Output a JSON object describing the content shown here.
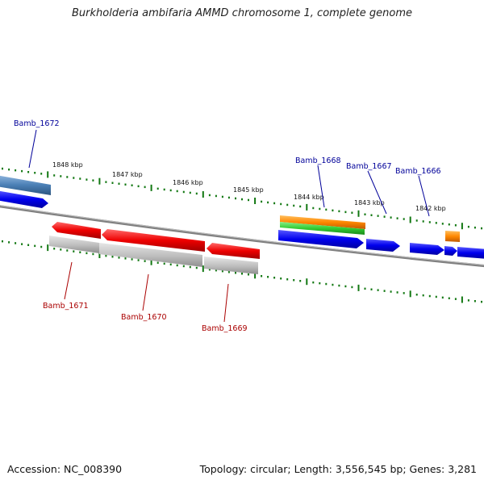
{
  "title": "Burkholderia ambifaria AMMD chromosome 1, complete genome",
  "footer": {
    "accession": "Accession: NC_008390",
    "topology": "Topology: circular; Length: 3,556,545 bp; Genes: 3,281"
  },
  "colors": {
    "forward_gene": "#0000ee",
    "reverse_gene": "#ee0000",
    "rrna": "#ff8800",
    "green_feature": "#33cc33",
    "steelblue_feature": "#4a7fb5",
    "reverse_bar": "#bbbbbb",
    "backbone": "#808080",
    "ticks": "#117711",
    "forward_label": "#000099",
    "reverse_label": "#aa0000"
  },
  "scale_labels": [
    "1848 kbp",
    "1847 kbp",
    "1846 kbp",
    "1845 kbp",
    "1844 kbp",
    "1843 kbp",
    "1842 kbp"
  ],
  "forward_labels": [
    "Bamb_1672",
    "Bamb_1668",
    "Bamb_1667",
    "Bamb_1666"
  ],
  "reverse_labels": [
    "Bamb_1671",
    "Bamb_1670",
    "Bamb_1669"
  ]
}
